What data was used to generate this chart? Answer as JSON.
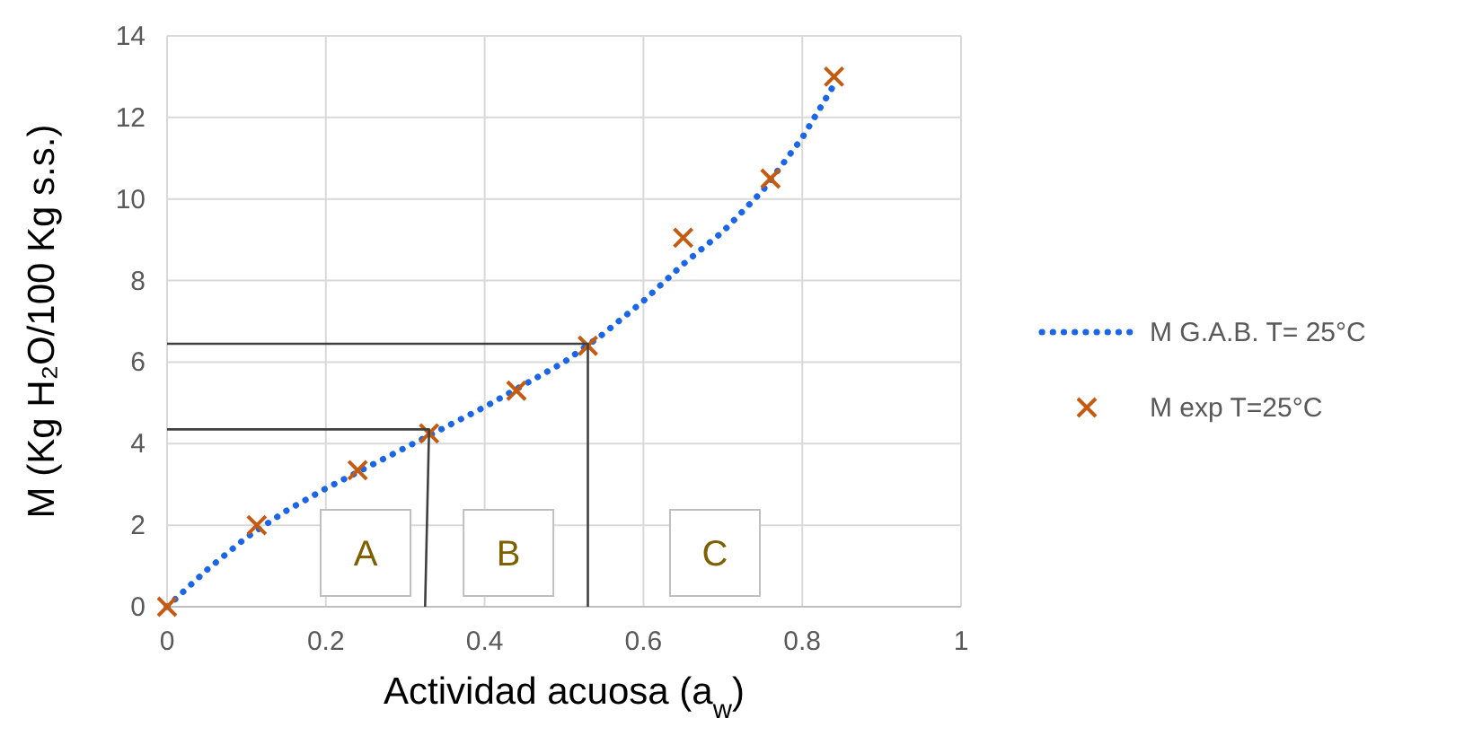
{
  "chart_data": {
    "type": "scatter",
    "xlabel": "Actividad acuosa (a$_{w}$)",
    "ylabel": "M (Kg H₂O/100 Kg s.s.)",
    "xlim": [
      0,
      1
    ],
    "ylim": [
      0,
      14
    ],
    "xticks": [
      0,
      0.2,
      0.4,
      0.6,
      0.8,
      1
    ],
    "yticks": [
      0,
      2,
      4,
      6,
      8,
      10,
      12,
      14
    ],
    "grid": true,
    "legend": "right",
    "series": [
      {
        "name": "M G.A.B. T= 25°C",
        "type": "line",
        "line_style": "dotted",
        "marker": "none",
        "color": "#1a66e6",
        "x": [
          0,
          0.05,
          0.1,
          0.15,
          0.2,
          0.25,
          0.3,
          0.35,
          0.4,
          0.45,
          0.5,
          0.55,
          0.6,
          0.65,
          0.7,
          0.75,
          0.8,
          0.84
        ],
        "values": [
          0,
          0.9,
          1.7,
          2.35,
          2.9,
          3.4,
          3.9,
          4.4,
          4.9,
          5.45,
          6.0,
          6.7,
          7.5,
          8.4,
          9.2,
          10.2,
          11.5,
          12.8
        ]
      },
      {
        "name": "M exp T=25°C",
        "marker": "cross",
        "color": "#c55a11",
        "x": [
          0,
          0.113,
          0.24,
          0.33,
          0.44,
          0.53,
          0.65,
          0.76,
          0.84
        ],
        "values": [
          0,
          2.0,
          3.35,
          4.25,
          5.3,
          6.4,
          9.05,
          10.5,
          13.0
        ]
      },
      {
        "type": "line",
        "line_style": "solid",
        "marker": "none",
        "color": "#404040",
        "x": [
          0,
          0.33,
          0.325
        ],
        "values": [
          4.35,
          4.35,
          0
        ]
      },
      {
        "type": "line",
        "line_style": "solid",
        "marker": "none",
        "color": "#404040",
        "x": [
          0,
          0.53,
          0.53
        ],
        "values": [
          6.45,
          6.45,
          0
        ]
      }
    ],
    "annotations": [
      "A",
      "B",
      "C"
    ]
  }
}
